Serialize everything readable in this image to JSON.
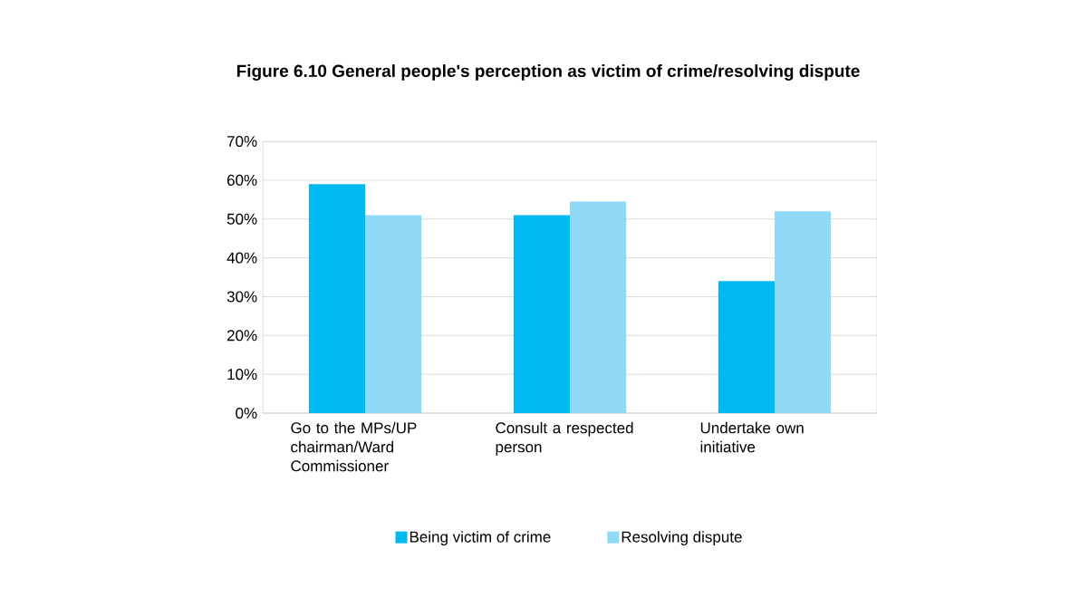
{
  "chart_data": {
    "type": "bar",
    "title": "Figure 6.10  General people's perception as victim of crime/resolving dispute",
    "categories": [
      "Go to the MPs/UP chairman/Ward Commissioner",
      "Consult a respected person",
      "Undertake own initiative"
    ],
    "series": [
      {
        "name": "Being victim of crime",
        "color": "#00b9f1",
        "values": [
          59,
          51,
          34
        ]
      },
      {
        "name": "Resolving dispute",
        "color": "#8fd8f6",
        "values": [
          51,
          54.5,
          52
        ]
      }
    ],
    "ylim": [
      0,
      70
    ],
    "yticks": [
      {
        "value": 0,
        "label": "0%"
      },
      {
        "value": 10,
        "label": "10%"
      },
      {
        "value": 20,
        "label": "20%"
      },
      {
        "value": 30,
        "label": "30%"
      },
      {
        "value": 40,
        "label": "40%"
      },
      {
        "value": 50,
        "label": "50%"
      },
      {
        "value": 60,
        "label": "60%"
      },
      {
        "value": 70,
        "label": "70%"
      }
    ],
    "grid": "y",
    "legend": "bottom"
  }
}
